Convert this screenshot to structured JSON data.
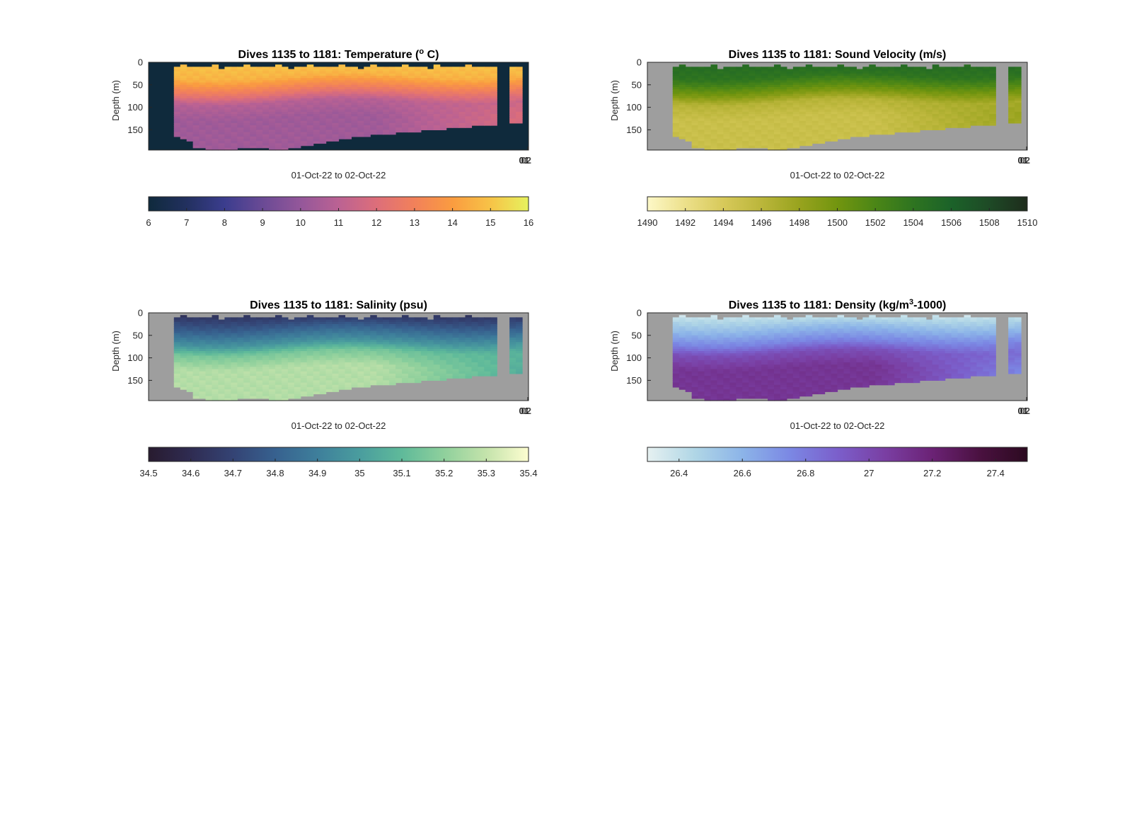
{
  "figure_background": "#ffffff",
  "chart_data": [
    {
      "type": "heatmap",
      "title_main": "Dives 1135 to 1181: Temperature (",
      "title_sup": "o",
      "title_tail": " C)",
      "xlabel": "01-Oct-22 to 02-Oct-22",
      "ylabel": "Depth (m)",
      "x_tick_labels": [
        "01",
        "02"
      ],
      "y_ticks": [
        0,
        50,
        100,
        150
      ],
      "ylim": [
        0,
        195
      ],
      "dives": [
        1135,
        1181
      ],
      "nodata_color": "#0f2a3c",
      "colorbar": {
        "range": [
          6,
          16
        ],
        "ticks": [
          6,
          7,
          8,
          9,
          10,
          11,
          12,
          13,
          14,
          15,
          16
        ],
        "tick_labels": [
          "6",
          "7",
          "8",
          "9",
          "10",
          "11",
          "12",
          "13",
          "14",
          "15",
          "16"
        ],
        "colors": [
          "#0f2a3c",
          "#22305f",
          "#3b3d8e",
          "#6a4a95",
          "#94579a",
          "#bb6293",
          "#dd6e7a",
          "#f2815a",
          "#fa9c40",
          "#f7c347",
          "#e6f25e"
        ]
      },
      "profile": {
        "surface": 15.0,
        "mixed": 14.6,
        "mid": 11.2,
        "deep": 10.3,
        "deep_late": 12.0
      },
      "gaps": [
        [
          55,
          57
        ],
        [
          59,
          60
        ]
      ]
    },
    {
      "type": "heatmap",
      "title_main": "Dives 1135 to 1181: Sound Velocity (m/s)",
      "title_sup": "",
      "title_tail": "",
      "xlabel": "01-Oct-22 to 02-Oct-22",
      "ylabel": "Depth (m)",
      "x_tick_labels": [
        "01",
        "02"
      ],
      "y_ticks": [
        0,
        50,
        100,
        150
      ],
      "ylim": [
        0,
        195
      ],
      "dives": [
        1135,
        1181
      ],
      "nodata_color": "#9e9e9e",
      "colorbar": {
        "range": [
          1490,
          1510
        ],
        "ticks": [
          1490,
          1492,
          1494,
          1496,
          1498,
          1500,
          1502,
          1504,
          1506,
          1508,
          1510
        ],
        "tick_labels": [
          "1490",
          "1492",
          "1494",
          "1496",
          "1498",
          "1500",
          "1502",
          "1504",
          "1506",
          "1508",
          "1510"
        ],
        "colors": [
          "#fdf8c8",
          "#ece08a",
          "#d7c95a",
          "#bbb63b",
          "#98a31e",
          "#72950f",
          "#4b8616",
          "#2e7420",
          "#1b6229",
          "#1e4a26",
          "#1e2c1c"
        ]
      },
      "profile": {
        "surface": 1505.0,
        "mixed": 1504.0,
        "mid": 1497.0,
        "deep": 1495.0,
        "deep_late": 1498.0
      },
      "gaps": [
        [
          55,
          57
        ],
        [
          59,
          60
        ]
      ]
    },
    {
      "type": "heatmap",
      "title_main": "Dives 1135 to 1181: Salinity (psu)",
      "title_sup": "",
      "title_tail": "",
      "xlabel": "01-Oct-22 to 02-Oct-22",
      "ylabel": "Depth (m)",
      "x_tick_labels": [
        "01",
        "02"
      ],
      "y_ticks": [
        0,
        50,
        100,
        150
      ],
      "ylim": [
        0,
        195
      ],
      "dives": [
        1135,
        1181
      ],
      "nodata_color": "#9e9e9e",
      "colorbar": {
        "range": [
          34.5,
          35.4
        ],
        "ticks": [
          34.5,
          34.6,
          34.7,
          34.8,
          34.9,
          35,
          35.1,
          35.2,
          35.3,
          35.4
        ],
        "tick_labels": [
          "34.5",
          "34.6",
          "34.7",
          "34.8",
          "34.9",
          "35",
          "35.1",
          "35.2",
          "35.3",
          "35.4"
        ],
        "colors": [
          "#281b2f",
          "#2f2c52",
          "#344374",
          "#37618f",
          "#3e7f9b",
          "#4a9d9e",
          "#5fba9a",
          "#8fd09c",
          "#c4e3ab",
          "#fdfdd0"
        ]
      },
      "profile": {
        "surface": 34.62,
        "mixed": 34.78,
        "mid": 35.08,
        "deep": 35.27,
        "deep_late": 35.05
      },
      "gaps": [
        [
          55,
          57
        ],
        [
          59,
          60
        ]
      ]
    },
    {
      "type": "heatmap",
      "title_main": "Dives 1135 to 1181: Density (kg/m",
      "title_sup": "3",
      "title_tail": "-1000)",
      "xlabel": "01-Oct-22 to 02-Oct-22",
      "ylabel": "Depth (m)",
      "x_tick_labels": [
        "01",
        "02"
      ],
      "y_ticks": [
        0,
        50,
        100,
        150
      ],
      "ylim": [
        0,
        195
      ],
      "dives": [
        1135,
        1181
      ],
      "nodata_color": "#9e9e9e",
      "colorbar": {
        "range": [
          26.3,
          27.5
        ],
        "ticks": [
          26.4,
          26.6,
          26.8,
          27,
          27.2,
          27.4
        ],
        "tick_labels": [
          "26.4",
          "26.6",
          "26.8",
          "27",
          "27.2",
          "27.4"
        ],
        "colors": [
          "#e6f1f1",
          "#b0d6e6",
          "#8cb4e8",
          "#7b88e4",
          "#7b5fcb",
          "#7a3fa3",
          "#6b2275",
          "#4a1140",
          "#2c0a20"
        ]
      },
      "profile": {
        "surface": 26.35,
        "mixed": 26.55,
        "mid": 26.9,
        "deep": 27.1,
        "deep_late": 26.75
      },
      "gaps": [
        [
          55,
          57
        ],
        [
          59,
          60
        ]
      ]
    }
  ]
}
